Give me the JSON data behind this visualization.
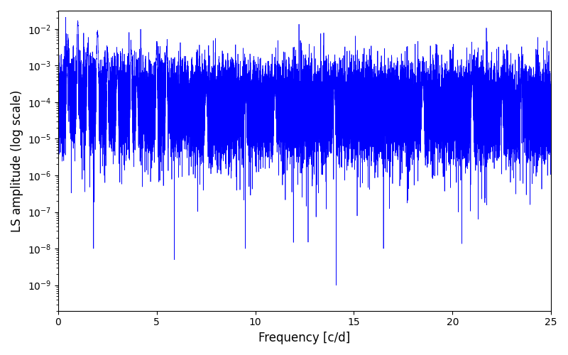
{
  "title": "",
  "xlabel": "Frequency [c/d]",
  "ylabel": "LS amplitude (log scale)",
  "xlim": [
    0,
    25
  ],
  "ylim_log": [
    -9.7,
    -1.5
  ],
  "line_color": "#0000ff",
  "line_width": 0.5,
  "background_color": "#ffffff",
  "seed": 12345,
  "n_points": 25000,
  "figsize": [
    8.0,
    5.0
  ],
  "dpi": 100
}
